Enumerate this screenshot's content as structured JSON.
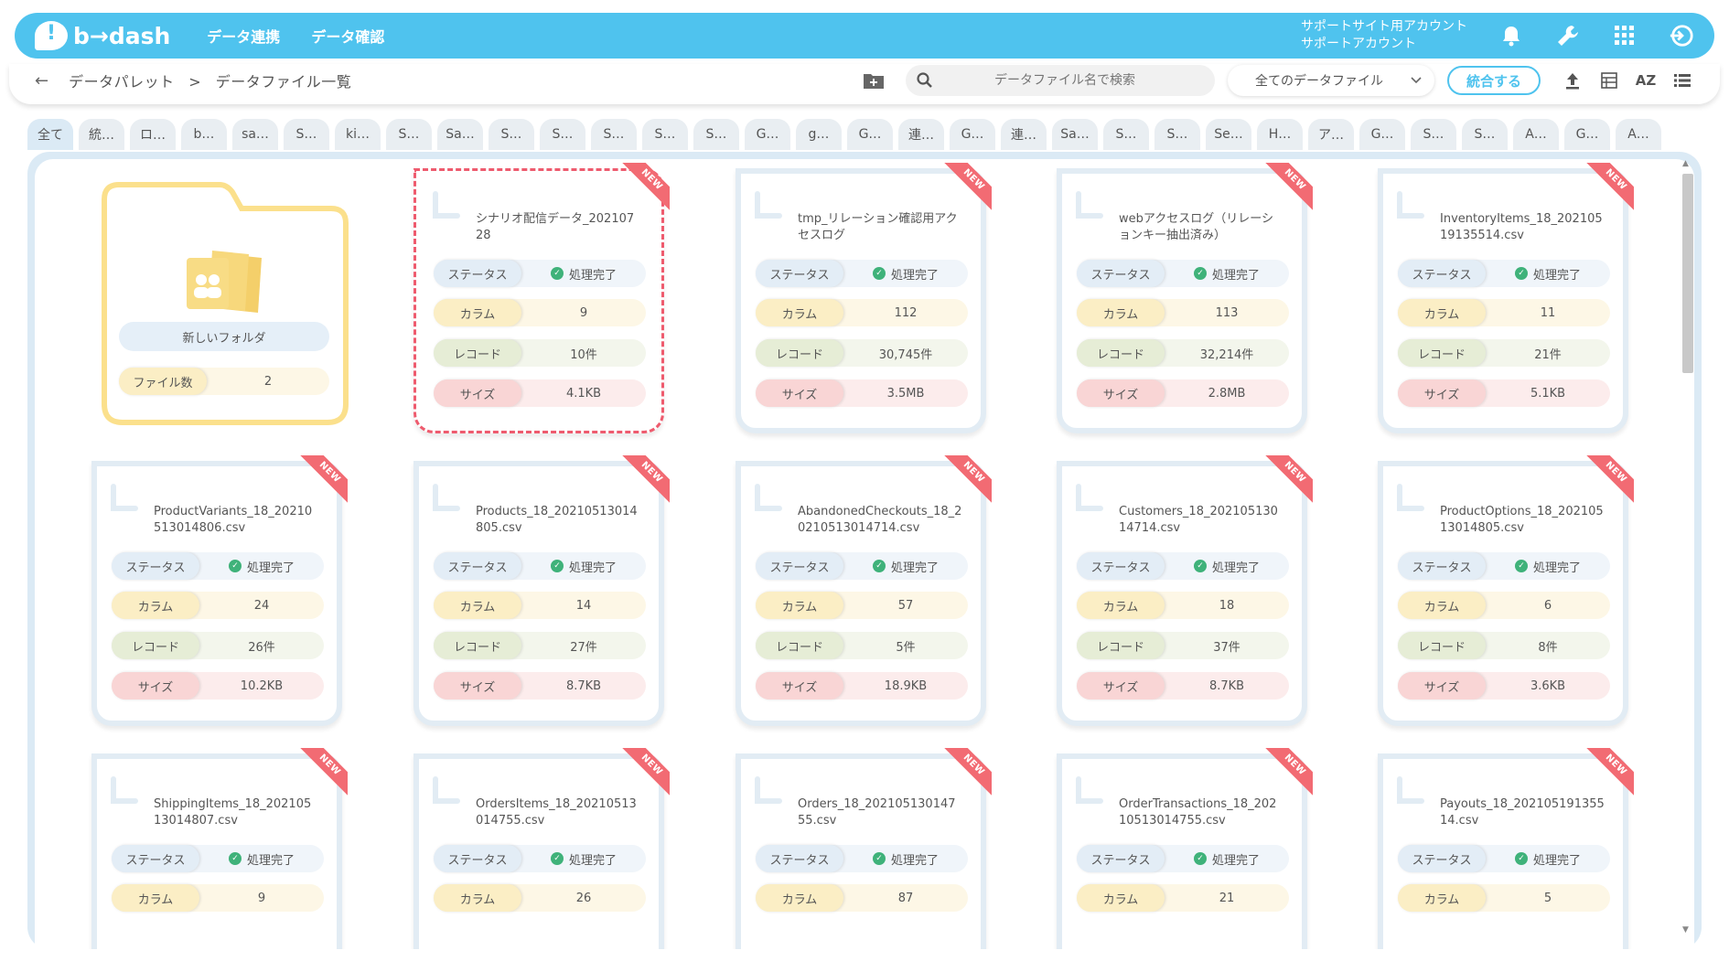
{
  "header": {
    "logo_text": "b→dash",
    "nav": [
      "データ連携",
      "データ確認"
    ],
    "account_line1": "サポートサイト用アカウント",
    "account_line2": "サポートアカウント"
  },
  "toolbar": {
    "back_arrow": "←",
    "crumb_root": "データパレット",
    "crumb_sep": ">",
    "crumb_current": "データファイル一覧",
    "search_placeholder": "データファイル名で検索",
    "filter_value": "全てのデータファイル",
    "merge_label": "統合する",
    "sort_label": "AZ"
  },
  "tabs": [
    "全て",
    "統…",
    "ロ…",
    "b…",
    "sa…",
    "S…",
    "ki…",
    "S…",
    "Sa…",
    "S…",
    "S…",
    "S…",
    "S…",
    "S…",
    "G…",
    "g…",
    "G…",
    "連…",
    "G…",
    "連…",
    "Sa…",
    "S…",
    "S…",
    "Se…",
    "H…",
    "ア…",
    "G…",
    "S…",
    "S…",
    "A…",
    "G…",
    "A…"
  ],
  "folder": {
    "name": "新しいフォルダ",
    "count_label": "ファイル数",
    "count_value": "2"
  },
  "labels": {
    "status": "ステータス",
    "column": "カラム",
    "record": "レコード",
    "size": "サイズ",
    "badge": "NEW",
    "status_done": "処理完了"
  },
  "files": [
    {
      "name": "シナリオ配信データ_20210728",
      "columns": "9",
      "records": "10件",
      "size": "4.1KB",
      "selected": true
    },
    {
      "name": "tmp_リレーション確認用アクセスログ",
      "columns": "112",
      "records": "30,745件",
      "size": "3.5MB"
    },
    {
      "name": "webアクセスログ（リレーションキー抽出済み）",
      "columns": "113",
      "records": "32,214件",
      "size": "2.8MB"
    },
    {
      "name": "InventoryItems_18_20210519135514.csv",
      "columns": "11",
      "records": "21件",
      "size": "5.1KB"
    },
    {
      "name": "ProductVariants_18_20210513014806.csv",
      "columns": "24",
      "records": "26件",
      "size": "10.2KB"
    },
    {
      "name": "Products_18_20210513014805.csv",
      "columns": "14",
      "records": "27件",
      "size": "8.7KB"
    },
    {
      "name": "AbandonedCheckouts_18_20210513014714.csv",
      "columns": "57",
      "records": "5件",
      "size": "18.9KB"
    },
    {
      "name": "Customers_18_20210513014714.csv",
      "columns": "18",
      "records": "37件",
      "size": "8.7KB"
    },
    {
      "name": "ProductOptions_18_20210513014805.csv",
      "columns": "6",
      "records": "8件",
      "size": "3.6KB"
    },
    {
      "name": "ShippingItems_18_20210513014807.csv",
      "columns": "9"
    },
    {
      "name": "OrdersItems_18_20210513014755.csv",
      "columns": "26"
    },
    {
      "name": "Orders_18_20210513014755.csv",
      "columns": "87"
    },
    {
      "name": "OrderTransactions_18_20210513014755.csv",
      "columns": "21"
    },
    {
      "name": "Payouts_18_20210519135514.csv",
      "columns": "5"
    }
  ],
  "colors": {
    "accent": "#4fc3ee",
    "new_badge": "#f26b73",
    "folder": "#fbe08c",
    "selected_border": "#ee5b6e",
    "check": "#3fb27a"
  }
}
